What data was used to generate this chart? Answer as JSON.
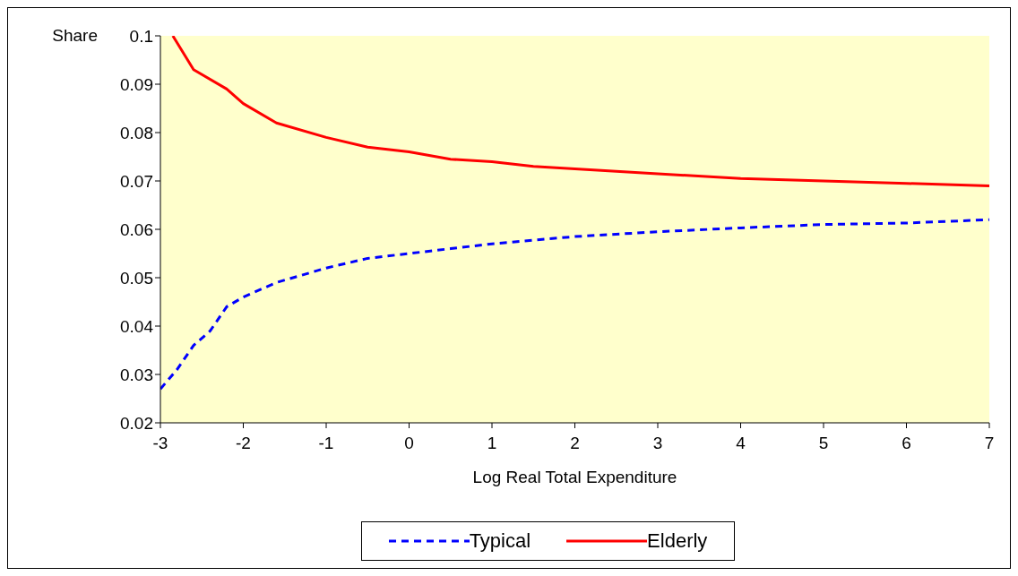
{
  "chart_data": {
    "type": "line",
    "xlabel": "Log Real Total Expenditure",
    "ylabel": "Share",
    "xlim": [
      -3,
      7
    ],
    "xticks": [
      -3,
      -2,
      -1,
      0,
      1,
      2,
      3,
      4,
      5,
      6,
      7
    ],
    "ylim": [
      0.02,
      0.1
    ],
    "yticks": [
      0.02,
      0.03,
      0.04,
      0.05,
      0.06,
      0.07,
      0.08,
      0.09,
      0.1
    ],
    "grid": false,
    "legend": "bottom",
    "marker": "none",
    "series": [
      {
        "name": "Typical",
        "color": "#0000ff",
        "line_style": "dashed",
        "x": [
          -3,
          -2.8,
          -2.6,
          -2.4,
          -2.2,
          -2,
          -1.6,
          -1,
          -0.5,
          0,
          0.5,
          1,
          2,
          3,
          4,
          5,
          6,
          7
        ],
        "values": [
          0.027,
          0.031,
          0.036,
          0.039,
          0.044,
          0.046,
          0.049,
          0.052,
          0.054,
          0.055,
          0.056,
          0.057,
          0.0585,
          0.0595,
          0.0603,
          0.061,
          0.0613,
          0.062
        ]
      },
      {
        "name": "Elderly",
        "color": "#ff0000",
        "line_style": "solid",
        "x": [
          -2.85,
          -2.6,
          -2.2,
          -2,
          -1.6,
          -1,
          -0.5,
          0,
          0.5,
          1,
          1.5,
          2,
          3,
          4,
          5,
          6,
          7
        ],
        "values": [
          0.1,
          0.093,
          0.089,
          0.086,
          0.082,
          0.079,
          0.077,
          0.076,
          0.0745,
          0.074,
          0.073,
          0.0725,
          0.0715,
          0.0705,
          0.07,
          0.0695,
          0.069
        ]
      }
    ]
  }
}
